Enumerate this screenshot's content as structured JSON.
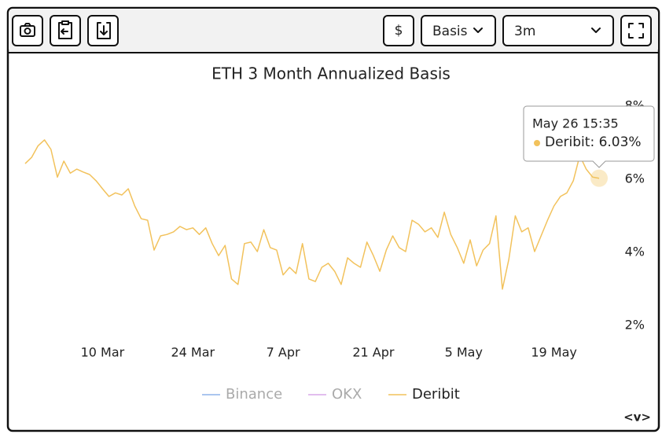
{
  "toolbar": {
    "currency": "$",
    "metric": "Basis",
    "period": "3m"
  },
  "chart_data": {
    "type": "line",
    "title": "ETH 3 Month Annualized Basis",
    "x": [
      "Feb 26",
      "Feb 27",
      "Feb 28",
      "Mar 1",
      "Mar 2",
      "Mar 3",
      "Mar 4",
      "Mar 5",
      "Mar 6",
      "Mar 7",
      "Mar 8",
      "Mar 9",
      "Mar 10",
      "Mar 11",
      "Mar 12",
      "Mar 13",
      "Mar 14",
      "Mar 15",
      "Mar 16",
      "Mar 17",
      "Mar 18",
      "Mar 19",
      "Mar 20",
      "Mar 21",
      "Mar 22",
      "Mar 23",
      "Mar 24",
      "Mar 25",
      "Mar 26",
      "Mar 27",
      "Mar 28",
      "Mar 29",
      "Mar 30",
      "Mar 31",
      "Apr 1",
      "Apr 2",
      "Apr 3",
      "Apr 4",
      "Apr 5",
      "Apr 6",
      "Apr 7",
      "Apr 8",
      "Apr 9",
      "Apr 10",
      "Apr 11",
      "Apr 12",
      "Apr 13",
      "Apr 14",
      "Apr 15",
      "Apr 16",
      "Apr 17",
      "Apr 18",
      "Apr 19",
      "Apr 20",
      "Apr 21",
      "Apr 22",
      "Apr 23",
      "Apr 24",
      "Apr 25",
      "Apr 26",
      "Apr 27",
      "Apr 28",
      "Apr 29",
      "Apr 30",
      "May 1",
      "May 2",
      "May 3",
      "May 4",
      "May 5",
      "May 6",
      "May 7",
      "May 8",
      "May 9",
      "May 10",
      "May 11",
      "May 12",
      "May 13",
      "May 14",
      "May 15",
      "May 16",
      "May 17",
      "May 18",
      "May 19",
      "May 20",
      "May 21",
      "May 22",
      "May 23",
      "May 24",
      "May 25",
      "May 26"
    ],
    "series": [
      {
        "name": "Deribit",
        "color": "#f2c25c",
        "values": [
          6.43,
          6.6,
          6.92,
          7.08,
          6.82,
          6.06,
          6.5,
          6.17,
          6.28,
          6.2,
          6.13,
          5.96,
          5.74,
          5.53,
          5.63,
          5.57,
          5.74,
          5.27,
          4.92,
          4.88,
          4.06,
          4.45,
          4.49,
          4.56,
          4.71,
          4.62,
          4.67,
          4.49,
          4.67,
          4.24,
          3.91,
          4.19,
          3.27,
          3.12,
          4.24,
          4.28,
          4.02,
          4.62,
          4.13,
          4.06,
          3.38,
          3.59,
          3.42,
          4.24,
          3.27,
          3.2,
          3.59,
          3.7,
          3.48,
          3.12,
          3.85,
          3.7,
          3.59,
          4.28,
          3.91,
          3.48,
          4.06,
          4.45,
          4.13,
          4.02,
          4.88,
          4.77,
          4.56,
          4.67,
          4.41,
          5.1,
          4.49,
          4.13,
          3.7,
          4.34,
          3.63,
          4.06,
          4.24,
          5.0,
          2.99,
          3.81,
          5.0,
          4.56,
          4.67,
          4.02,
          4.45,
          4.88,
          5.27,
          5.53,
          5.63,
          5.96,
          6.65,
          6.28,
          6.06,
          6.03
        ]
      }
    ],
    "legend": [
      {
        "name": "Binance",
        "color": "#8fb4ea",
        "active": false
      },
      {
        "name": "OKX",
        "color": "#d9a8e8",
        "active": false
      },
      {
        "name": "Deribit",
        "color": "#f2c25c",
        "active": true
      }
    ],
    "ylim": [
      1.5,
      8.5
    ],
    "yticks": [
      {
        "value": 2,
        "label": "2%"
      },
      {
        "value": 4,
        "label": "4%"
      },
      {
        "value": 6,
        "label": "6%"
      },
      {
        "value": 8,
        "label": "8%"
      }
    ],
    "xticks": [
      {
        "value": "Mar 10",
        "label": "10 Mar"
      },
      {
        "value": "Mar 24",
        "label": "24 Mar"
      },
      {
        "value": "Apr 7",
        "label": "7 Apr"
      },
      {
        "value": "Apr 21",
        "label": "21 Apr"
      },
      {
        "value": "May 5",
        "label": "5 May"
      },
      {
        "value": "May 19",
        "label": "19 May"
      }
    ],
    "tooltip": {
      "title": "May 26 15:35",
      "text": "Deribit: 6.03%"
    },
    "footer": "<v>"
  }
}
